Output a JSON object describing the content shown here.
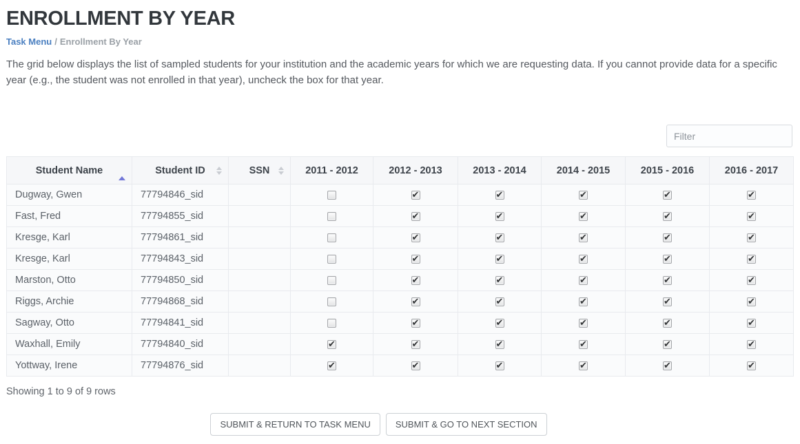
{
  "page": {
    "title": "ENROLLMENT BY YEAR",
    "breadcrumb": {
      "link": "Task Menu",
      "separator": "/",
      "current": "Enrollment By Year"
    },
    "description": "The grid below displays the list of sampled students for your institution and the academic years for which we are requesting data. If you cannot provide data for a specific year (e.g., the student was not enrolled in that year), uncheck the box for that year."
  },
  "toolbar": {
    "filter_placeholder": "Filter"
  },
  "table": {
    "columns": [
      {
        "label": "Student Name",
        "sort": "asc"
      },
      {
        "label": "Student ID",
        "sort": "both"
      },
      {
        "label": "SSN",
        "sort": "both"
      },
      {
        "label": "2011 - 2012",
        "sort": "none"
      },
      {
        "label": "2012 - 2013",
        "sort": "none"
      },
      {
        "label": "2013 - 2014",
        "sort": "none"
      },
      {
        "label": "2014 - 2015",
        "sort": "none"
      },
      {
        "label": "2015 - 2016",
        "sort": "none"
      },
      {
        "label": "2016 - 2017",
        "sort": "none"
      }
    ],
    "rows": [
      {
        "name": "Dugway, Gwen",
        "id": "77794846_sid",
        "ssn": "",
        "years": [
          false,
          true,
          true,
          true,
          true,
          true
        ]
      },
      {
        "name": "Fast, Fred",
        "id": "77794855_sid",
        "ssn": "",
        "years": [
          false,
          true,
          true,
          true,
          true,
          true
        ]
      },
      {
        "name": "Kresge, Karl",
        "id": "77794861_sid",
        "ssn": "",
        "years": [
          false,
          true,
          true,
          true,
          true,
          true
        ]
      },
      {
        "name": "Kresge, Karl",
        "id": "77794843_sid",
        "ssn": "",
        "years": [
          false,
          true,
          true,
          true,
          true,
          true
        ]
      },
      {
        "name": "Marston, Otto",
        "id": "77794850_sid",
        "ssn": "",
        "years": [
          false,
          true,
          true,
          true,
          true,
          true
        ]
      },
      {
        "name": "Riggs, Archie",
        "id": "77794868_sid",
        "ssn": "",
        "years": [
          false,
          true,
          true,
          true,
          true,
          true
        ]
      },
      {
        "name": "Sagway, Otto",
        "id": "77794841_sid",
        "ssn": "",
        "years": [
          false,
          true,
          true,
          true,
          true,
          true
        ]
      },
      {
        "name": "Waxhall, Emily",
        "id": "77794840_sid",
        "ssn": "",
        "years": [
          true,
          true,
          true,
          true,
          true,
          true
        ]
      },
      {
        "name": "Yottway, Irene",
        "id": "77794876_sid",
        "ssn": "",
        "years": [
          true,
          true,
          true,
          true,
          true,
          true
        ]
      }
    ]
  },
  "footer": {
    "showing_text": "Showing 1 to 9 of 9 rows"
  },
  "actions": {
    "submit_return": "SUBMIT & RETURN TO TASK MENU",
    "submit_next": "SUBMIT & GO TO NEXT SECTION"
  },
  "colors": {
    "title": "#32373c",
    "breadcrumb_link": "#4a7fc0",
    "sort_active": "#7277d8",
    "sort_inactive": "#c9ccd2",
    "table_row_bg": "#fafbfc",
    "table_header_bg": "#f6f7f9",
    "table_border": "#e8eaee"
  }
}
